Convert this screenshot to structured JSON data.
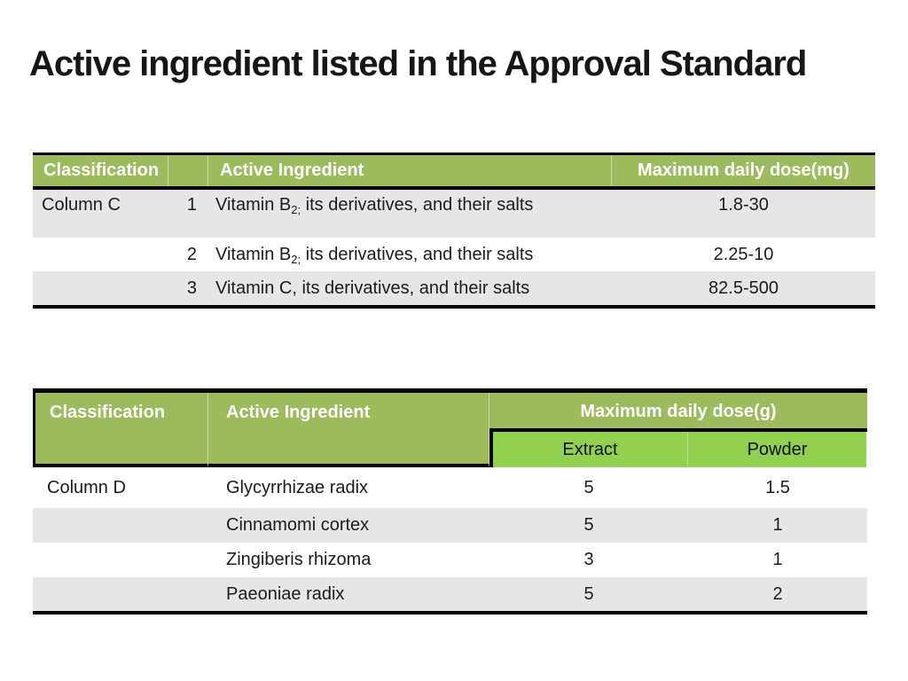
{
  "slide": {
    "title": "Active ingredient listed in the Approval Standard"
  },
  "colors": {
    "header_green": "#9dbb5d",
    "subheader_green": "#92d050",
    "row_gray": "#e7e6e6",
    "header_text": "#ffffff",
    "border_black": "#000000"
  },
  "table1": {
    "headers": {
      "classification": "Classification",
      "number": "",
      "ingredient": "Active Ingredient",
      "dose": "Maximum daily dose(mg)"
    },
    "rows": [
      {
        "classification": "Column C",
        "num": "1",
        "ingredient_pre": "Vitamin B",
        "ingredient_sub": "2;",
        "ingredient_post": " its derivatives, and their salts",
        "dose": "1.8-30"
      },
      {
        "classification": "",
        "num": "2",
        "ingredient_pre": "Vitamin B",
        "ingredient_sub": "2;",
        "ingredient_post": " its derivatives, and their salts",
        "dose": "2.25-10"
      },
      {
        "classification": "",
        "num": "3",
        "ingredient_pre": "Vitamin C, its derivatives, and their salts",
        "ingredient_sub": "",
        "ingredient_post": "",
        "dose": "82.5-500"
      }
    ]
  },
  "table2": {
    "headers": {
      "classification": "Classification",
      "ingredient": "Active Ingredient",
      "dose_group": "Maximum daily dose(g)",
      "extract": "Extract",
      "powder": "Powder"
    },
    "rows": [
      {
        "classification": "Column D",
        "ingredient": "Glycyrrhizae radix",
        "extract": "5",
        "powder": "1.5"
      },
      {
        "classification": "",
        "ingredient": "Cinnamomi cortex",
        "extract": "5",
        "powder": "1"
      },
      {
        "classification": "",
        "ingredient": "Zingiberis rhizoma",
        "extract": "3",
        "powder": "1"
      },
      {
        "classification": "",
        "ingredient": "Paeoniae radix",
        "extract": "5",
        "powder": "2"
      }
    ]
  }
}
